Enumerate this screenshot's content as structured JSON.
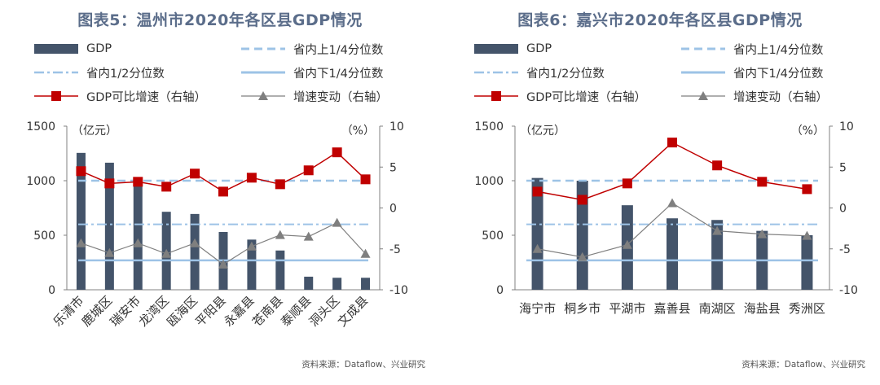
{
  "colors": {
    "bar": "#44546a",
    "q_line": "#9dc3e6",
    "med_line": "#9dc3e6",
    "growth": "#c00000",
    "delta": "#7f7f7f",
    "title": "#5b6d8a"
  },
  "legend_labels": {
    "gdp": "GDP",
    "upper_q": "省内上1/4分位数",
    "median": "省内1/2分位数",
    "lower_q": "省内下1/4分位数",
    "growth": "GDP可比增速（右轴）",
    "delta": "增速变动（右轴）"
  },
  "chart_data": [
    {
      "type": "bar",
      "title": "图表5：温州市2020年各区县GDP情况",
      "ylabel": "（亿元）",
      "y2label": "（%）",
      "ylim": [
        0,
        1500
      ],
      "y2lim": [
        -10,
        10
      ],
      "yticks": [
        "0",
        "500",
        "1000",
        "1500"
      ],
      "y2ticks": [
        "-10",
        "-5",
        "0",
        "5",
        "10"
      ],
      "categories": [
        "乐清市",
        "鹿城区",
        "瑞安市",
        "龙湾区",
        "瓯海区",
        "平阳县",
        "永嘉县",
        "苍南县",
        "泰顺县",
        "洞头区",
        "文成县"
      ],
      "gdp": [
        1255,
        1165,
        1000,
        715,
        695,
        530,
        460,
        360,
        120,
        110,
        110
      ],
      "upper_q": 1000,
      "median": 600,
      "lower_q": 270,
      "growth": [
        4.5,
        3.0,
        3.2,
        2.6,
        4.2,
        2.0,
        3.7,
        2.9,
        4.6,
        6.8,
        3.5
      ],
      "delta": [
        -4.3,
        -5.5,
        -4.3,
        -5.6,
        -4.3,
        -6.9,
        -4.7,
        -3.3,
        -3.5,
        -1.8,
        -5.6
      ],
      "rotated_labels": true,
      "source": "资料来源：Dataflow、兴业研究"
    },
    {
      "type": "bar",
      "title": "图表6：嘉兴市2020年各区县GDP情况",
      "ylabel": "（亿元）",
      "y2label": "（%）",
      "ylim": [
        0,
        1500
      ],
      "y2lim": [
        -10,
        10
      ],
      "yticks": [
        "0",
        "500",
        "1000",
        "1500"
      ],
      "y2ticks": [
        "-10",
        "-5",
        "0",
        "5",
        "10"
      ],
      "categories": [
        "海宁市",
        "桐乡市",
        "平湖市",
        "嘉善县",
        "南湖区",
        "海盐县",
        "秀洲区"
      ],
      "gdp": [
        1025,
        1000,
        775,
        655,
        640,
        540,
        500
      ],
      "upper_q": 1000,
      "median": 600,
      "lower_q": 270,
      "growth": [
        2.0,
        1.0,
        3.0,
        8.0,
        5.2,
        3.2,
        2.3
      ],
      "delta": [
        -5.0,
        -6.0,
        -4.5,
        0.6,
        -2.8,
        -3.2,
        -3.4
      ],
      "rotated_labels": false,
      "source": "资料来源：Dataflow、兴业研究"
    }
  ]
}
